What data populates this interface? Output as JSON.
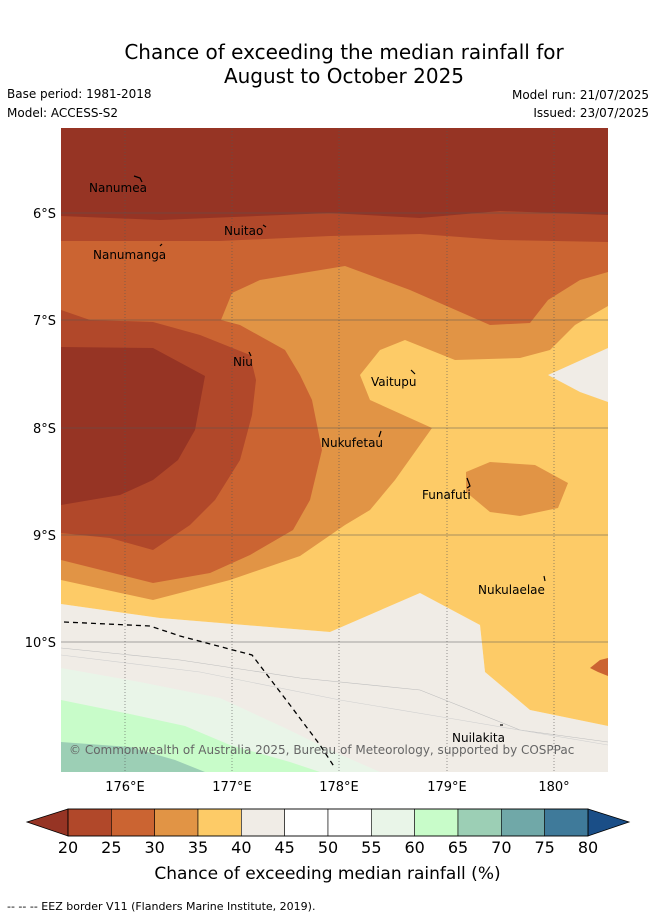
{
  "title_line1": "Chance of exceeding the median rainfall for",
  "title_line2": "August to October 2025",
  "meta": {
    "base_period": "Base period: 1981-2018",
    "model": "Model: ACCESS-S2",
    "model_run": "Model run: 21/07/2025",
    "issued": "Issued: 23/07/2025"
  },
  "map": {
    "lat_labels": [
      "6°S",
      "7°S",
      "8°S",
      "9°S",
      "10°S"
    ],
    "lon_labels": [
      "176°E",
      "177°E",
      "178°E",
      "179°E",
      "180°"
    ],
    "places": [
      "Nanumea",
      "Nuitao",
      "Nanumanga",
      "Niu",
      "Vaitupu",
      "Nukufetau",
      "Funafuti",
      "Nukulaelae",
      "Nuilakita"
    ],
    "copyright": "© Commonwealth of Australia 2025, Bureau of Meteorology, supported by COSPPac"
  },
  "colorbar": {
    "ticks": [
      "20",
      "25",
      "30",
      "35",
      "40",
      "45",
      "50",
      "55",
      "60",
      "65",
      "70",
      "75",
      "80"
    ],
    "colors": [
      "#b1482a",
      "#cb6432",
      "#e19445",
      "#fdcb67",
      "#f0ece6",
      "#ffffff",
      "#ffffff",
      "#e9f5e8",
      "#c8fcc9",
      "#9ccfb5",
      "#70a8a8",
      "#3f7a9a"
    ],
    "under_color": "#963424",
    "over_color": "#1a4e87",
    "label": "Chance of exceeding median rainfall (%)"
  },
  "footnote": "-- -- -- EEZ border V11 (Flanders Marine Institute, 2019)."
}
